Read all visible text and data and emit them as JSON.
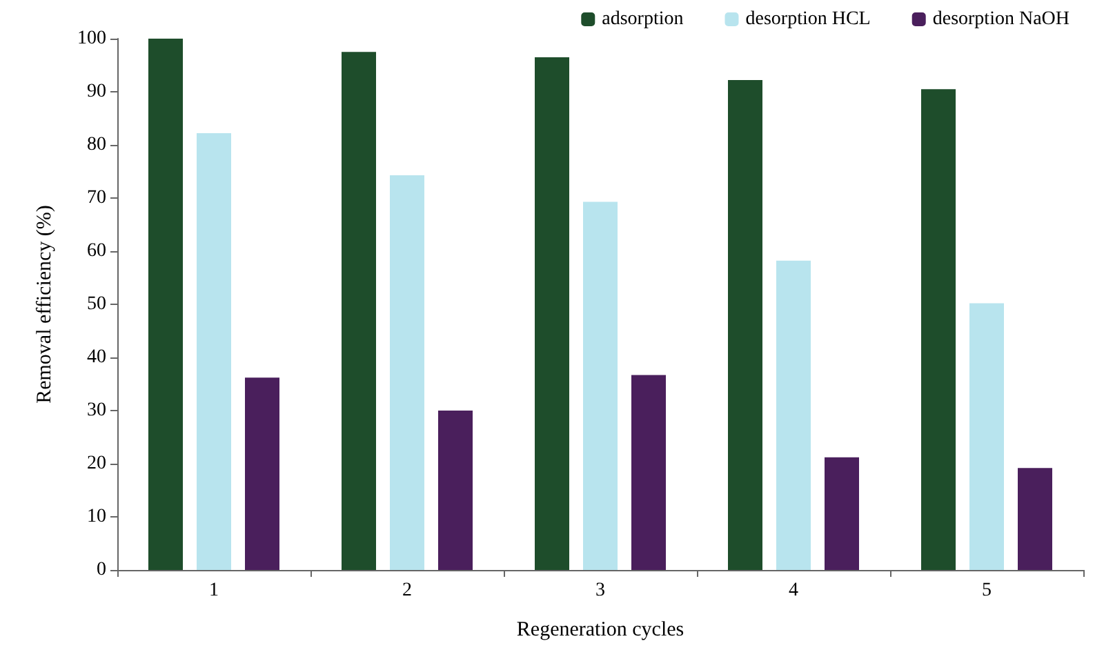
{
  "chart_data": {
    "type": "bar",
    "xlabel": "Regeneration cycles",
    "ylabel": "Removal efficiency (%)",
    "categories": [
      "1",
      "2",
      "3",
      "4",
      "5"
    ],
    "series": [
      {
        "name": "adsorption",
        "color": "#1e4d2b",
        "values": [
          100,
          97.5,
          96.5,
          92.2,
          90.5
        ]
      },
      {
        "name": "desorption HCL",
        "color": "#b8e4ee",
        "values": [
          82.2,
          74.3,
          69.3,
          58.2,
          50.2
        ]
      },
      {
        "name": "desorption NaOH",
        "color": "#4a1f5c",
        "values": [
          36.2,
          30,
          36.7,
          21.2,
          19.2
        ]
      }
    ],
    "ylim": [
      0,
      100
    ],
    "yticks": [
      0,
      10,
      20,
      30,
      40,
      50,
      60,
      70,
      80,
      90,
      100
    ],
    "grid": false,
    "legend": "top right"
  }
}
